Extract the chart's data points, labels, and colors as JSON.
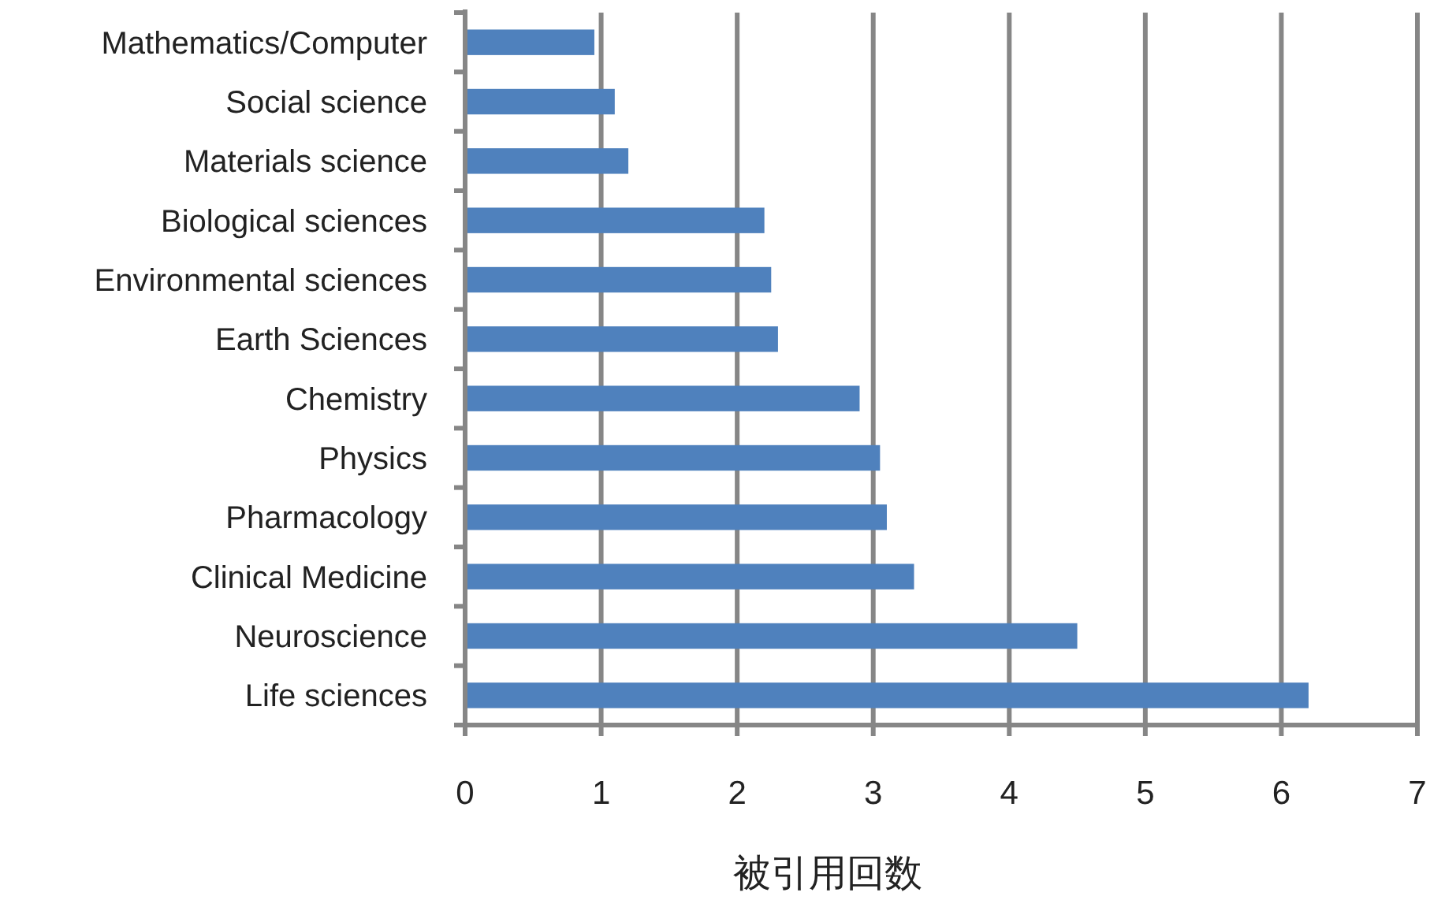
{
  "chart_data": {
    "type": "bar",
    "orientation": "horizontal",
    "xlabel": "被引用回数",
    "categories": [
      "Mathematics/Computer",
      "Social science",
      "Materials science",
      "Biological sciences",
      "Environmental sciences",
      "Earth Sciences",
      "Chemistry",
      "Physics",
      "Pharmacology",
      "Clinical Medicine",
      "Neuroscience",
      "Life sciences"
    ],
    "values": [
      0.95,
      1.1,
      1.2,
      2.2,
      2.25,
      2.3,
      2.9,
      3.05,
      3.1,
      3.3,
      4.5,
      6.2
    ],
    "color": "#4f81bd",
    "xlim": [
      0,
      7
    ],
    "xticks": [
      0,
      1,
      2,
      3,
      4,
      5,
      6,
      7
    ],
    "grid": "x"
  }
}
